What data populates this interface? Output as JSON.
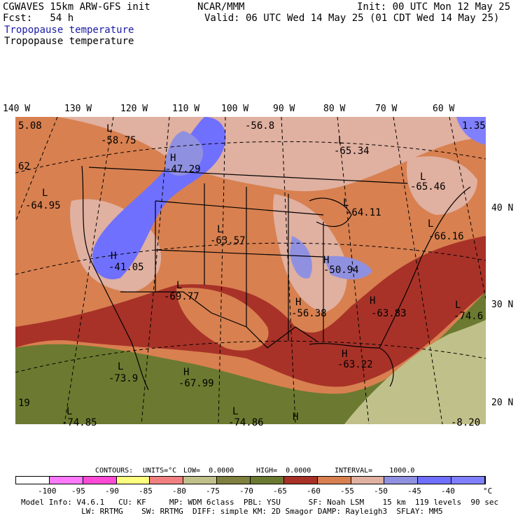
{
  "header": {
    "model": "CGWAVES 15km ARW-GFS init",
    "fcst": "Fcst:   54 h",
    "org": "NCAR/MMM",
    "init": "Init: 00 UTC Mon 12 May 25",
    "valid": "Valid: 06 UTC Wed 14 May 25 (01 CDT Wed 14 May 25)",
    "field_title_blue": "Tropopause temperature",
    "field_title_black": "Tropopause temperature"
  },
  "longitudes": [
    "140 W",
    "130 W",
    "120 W",
    "110 W",
    "100 W",
    "90 W",
    "80 W",
    "70 W",
    "60 W"
  ],
  "latitudes": [
    "40 N",
    "30 N",
    "20 N"
  ],
  "map_labels": [
    {
      "letter": "L",
      "value": "-58.75"
    },
    {
      "letter": "H",
      "value": "-47.29"
    },
    {
      "letter": "",
      "value": "-56.8"
    },
    {
      "letter": "L",
      "value": "-65.34"
    },
    {
      "letter": "L",
      "value": "-64.95"
    },
    {
      "letter": "L",
      "value": "-63.57"
    },
    {
      "letter": "H",
      "value": "-41.05"
    },
    {
      "letter": "L",
      "value": "-64.11"
    },
    {
      "letter": "L",
      "value": "-65.46"
    },
    {
      "letter": "L",
      "value": "-66.16"
    },
    {
      "letter": "H",
      "value": "-50.94"
    },
    {
      "letter": "L",
      "value": "-69.77"
    },
    {
      "letter": "H",
      "value": "-56.38"
    },
    {
      "letter": "H",
      "value": "-63.83"
    },
    {
      "letter": "L",
      "value": "-74.6"
    },
    {
      "letter": "H",
      "value": "-63.22"
    },
    {
      "letter": "L",
      "value": "-73.9"
    },
    {
      "letter": "H",
      "value": "-67.99"
    },
    {
      "letter": "L",
      "value": "-74.85"
    },
    {
      "letter": "L",
      "value": "-74.86"
    },
    {
      "letter": "H",
      "value": ""
    },
    {
      "letter": "",
      "value": "5.08"
    },
    {
      "letter": "",
      "value": "62"
    },
    {
      "letter": "",
      "value": "19"
    },
    {
      "letter": "",
      "value": "1.35"
    },
    {
      "letter": "",
      "value": "-8.20"
    }
  ],
  "contours": {
    "label": "CONTOURS:",
    "units": "UNITS=°C",
    "low": "LOW=  0.0000",
    "high": "HIGH=  0.0000",
    "interval": "INTERVAL=    1000.0"
  },
  "colorbar": {
    "colors": [
      "#ffffff",
      "#ff7aff",
      "#ff4ad6",
      "#ffff80",
      "#f08080",
      "#c0c08a",
      "#808040",
      "#6b7a30",
      "#a83228",
      "#d88050",
      "#e0b0a0",
      "#9090e0",
      "#7070ff",
      "#8080ff"
    ],
    "ticks": [
      "-100",
      "-95",
      "-90",
      "-85",
      "-80",
      "-75",
      "-70",
      "-65",
      "-60",
      "-55",
      "-50",
      "-45",
      "-40"
    ],
    "unit": "°C"
  },
  "footer": {
    "line1": "Model Info: V4.6.1   CU: KF     MP: WDM 6class  PBL: YSU      SF: Noah LSM    15 km  119 levels  90 sec",
    "line2": "             LW: RRTMG    SW: RRTMG  DIFF: simple KM: 2D Smagor DAMP: Rayleigh3  SFLAY: MM5"
  }
}
